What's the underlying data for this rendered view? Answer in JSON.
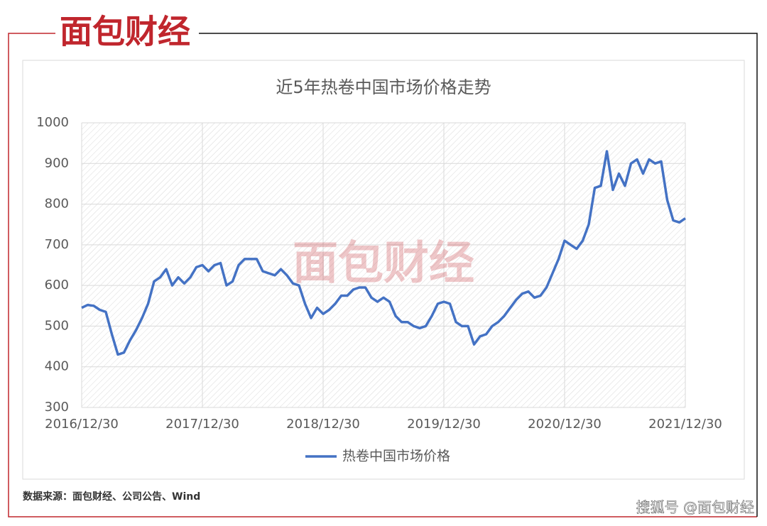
{
  "header": {
    "logo": "面包财经",
    "watermark": "面包财经"
  },
  "chart_data": {
    "type": "line",
    "title": "近5年热卷中国市场价格走势",
    "categories": [
      "2016/12/30",
      null,
      null,
      null,
      null,
      null,
      null,
      null,
      null,
      null,
      null,
      null,
      null,
      null,
      null,
      null,
      null,
      null,
      null,
      null,
      "2017/12/30",
      null,
      null,
      null,
      null,
      null,
      null,
      null,
      null,
      null,
      null,
      null,
      null,
      null,
      null,
      null,
      null,
      null,
      null,
      null,
      "2018/12/30",
      null,
      null,
      null,
      null,
      null,
      null,
      null,
      null,
      null,
      null,
      null,
      null,
      null,
      null,
      null,
      null,
      null,
      null,
      null,
      "2019/12/30",
      null,
      null,
      null,
      null,
      null,
      null,
      null,
      null,
      null,
      null,
      null,
      null,
      null,
      null,
      null,
      null,
      null,
      null,
      null,
      "2020/12/30",
      null,
      null,
      null,
      null,
      null,
      null,
      null,
      null,
      null,
      null,
      null,
      null,
      null,
      null,
      null,
      null,
      null,
      null,
      null,
      "2021/12/30"
    ],
    "series": [
      {
        "name": "热卷中国市场价格",
        "color": "#4472c4",
        "values": [
          545,
          552,
          550,
          540,
          535,
          480,
          430,
          435,
          465,
          490,
          520,
          555,
          610,
          620,
          640,
          600,
          620,
          605,
          620,
          645,
          650,
          635,
          650,
          655,
          600,
          610,
          650,
          665,
          665,
          665,
          635,
          630,
          625,
          640,
          625,
          605,
          600,
          555,
          520,
          545,
          530,
          540,
          555,
          575,
          575,
          590,
          595,
          595,
          570,
          560,
          570,
          560,
          525,
          510,
          510,
          500,
          495,
          500,
          525,
          555,
          560,
          555,
          510,
          500,
          500,
          455,
          475,
          480,
          500,
          510,
          525,
          545,
          565,
          580,
          585,
          570,
          575,
          595,
          630,
          665,
          710,
          700,
          690,
          710,
          750,
          840,
          845,
          930,
          835,
          875,
          845,
          900,
          910,
          875,
          910,
          900,
          905,
          810,
          760,
          755,
          765
        ]
      }
    ],
    "ylim": [
      300,
      1000
    ],
    "yticks": [
      300,
      400,
      500,
      600,
      700,
      800,
      900,
      1000
    ],
    "grid": true,
    "legend": "bottom"
  },
  "footer": {
    "source": "数据来源：面包财经、公司公告、Wind",
    "credit": "搜狐号 @面包财经"
  }
}
